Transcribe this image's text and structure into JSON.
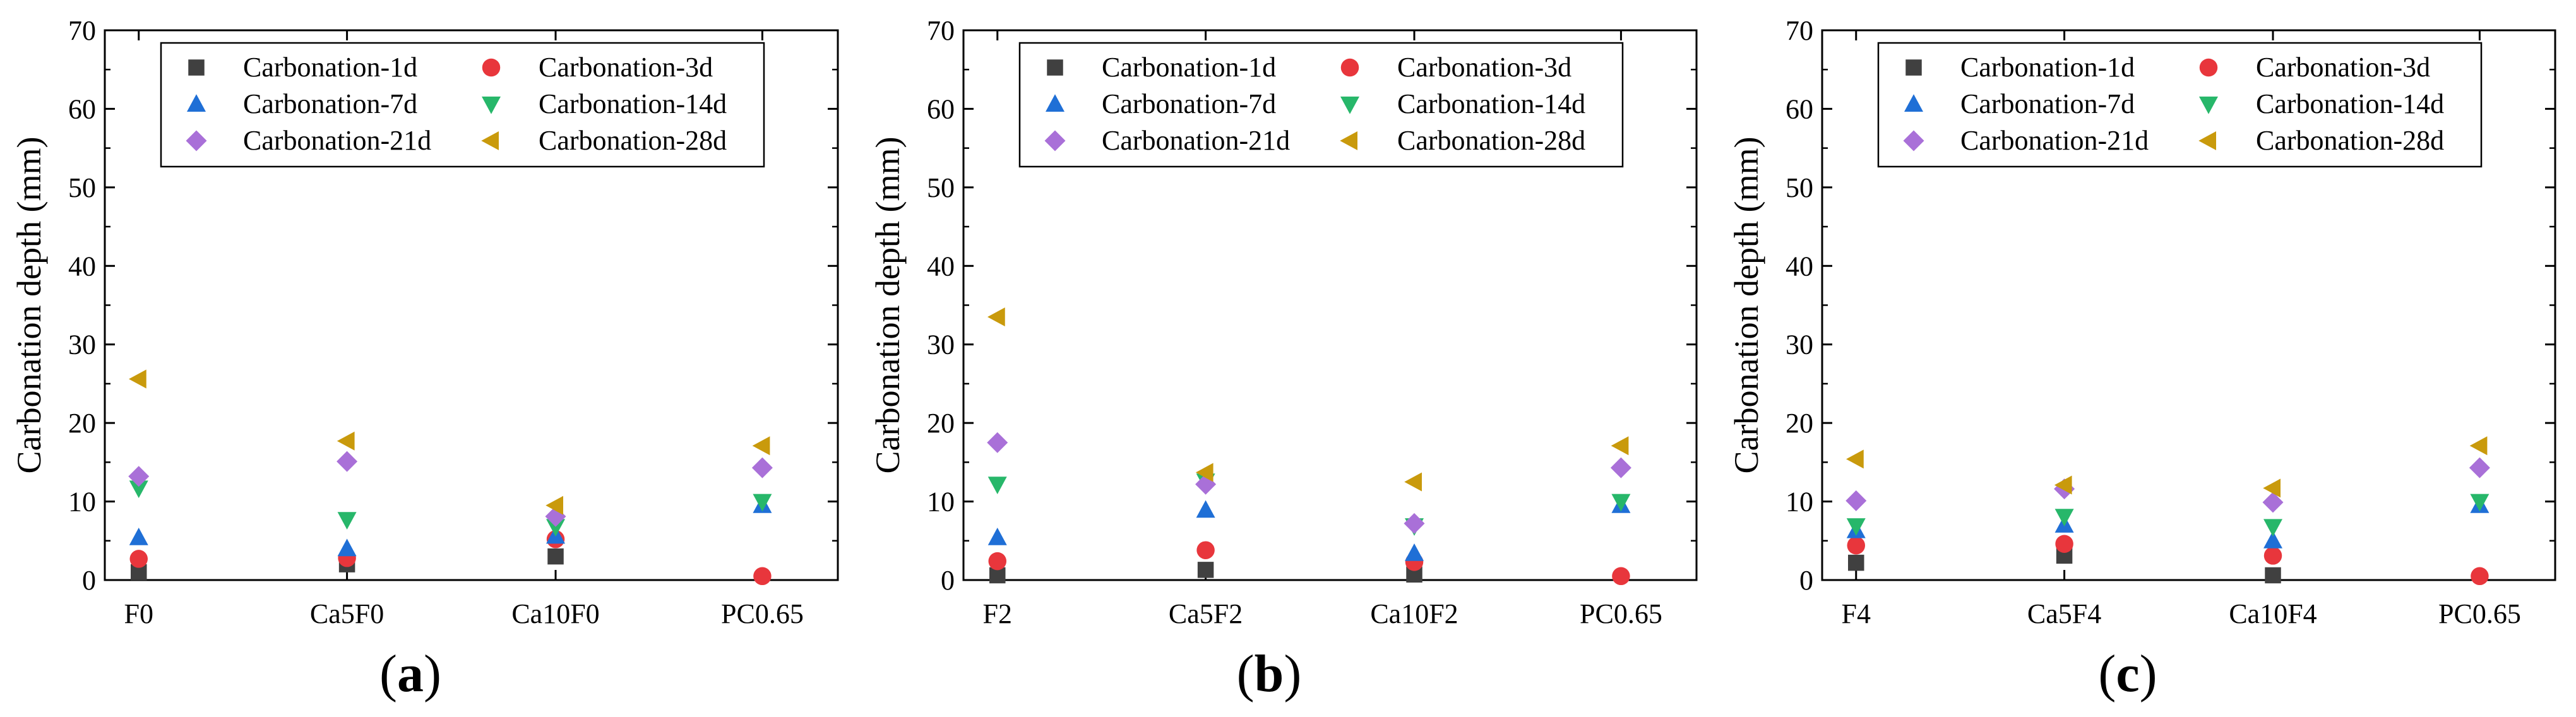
{
  "figure": {
    "panels": [
      {
        "id": "a",
        "label_open": "(",
        "label_letter": "a",
        "label_close": ")"
      },
      {
        "id": "b",
        "label_open": "(",
        "label_letter": "b",
        "label_close": ")"
      },
      {
        "id": "c",
        "label_open": "(",
        "label_letter": "c",
        "label_close": ")"
      }
    ]
  },
  "chart_data": [
    {
      "type": "scatter",
      "panel": "a",
      "title": "",
      "xlabel": "",
      "ylabel": "Carbonation depth (mm)",
      "ylim": [
        0,
        70
      ],
      "yticks": [
        "0",
        "10",
        "20",
        "30",
        "40",
        "50",
        "60",
        "70"
      ],
      "categories": [
        "F0",
        "Ca5F0",
        "Ca10F0",
        "PC0.65"
      ],
      "legend_position": "top-center",
      "series": [
        {
          "name": "Carbonation-1d",
          "marker": "square",
          "color": "#404040",
          "values": [
            1.0,
            2.0,
            3.0,
            null
          ]
        },
        {
          "name": "Carbonation-3d",
          "marker": "circle",
          "color": "#e8363c",
          "values": [
            2.7,
            2.8,
            5.2,
            0.5
          ]
        },
        {
          "name": "Carbonation-7d",
          "marker": "triangle-up",
          "color": "#1f6fd6",
          "values": [
            5.4,
            4.0,
            5.6,
            9.5
          ]
        },
        {
          "name": "Carbonation-14d",
          "marker": "triangle-down",
          "color": "#27b76a",
          "values": [
            11.7,
            7.7,
            6.8,
            10.0
          ]
        },
        {
          "name": "Carbonation-21d",
          "marker": "diamond",
          "color": "#a970d8",
          "values": [
            13.2,
            15.1,
            8.1,
            14.3
          ]
        },
        {
          "name": "Carbonation-28d",
          "marker": "triangle-left",
          "color": "#c99a0c",
          "values": [
            25.6,
            17.7,
            9.5,
            17.1
          ]
        }
      ]
    },
    {
      "type": "scatter",
      "panel": "b",
      "title": "",
      "xlabel": "",
      "ylabel": "Carbonation depth (mm)",
      "ylim": [
        0,
        70
      ],
      "yticks": [
        "0",
        "10",
        "20",
        "30",
        "40",
        "50",
        "60",
        "70"
      ],
      "categories": [
        "F2",
        "Ca5F2",
        "Ca10F2",
        "PC0.65"
      ],
      "legend_position": "top-center",
      "series": [
        {
          "name": "Carbonation-1d",
          "marker": "square",
          "color": "#404040",
          "values": [
            0.6,
            1.3,
            0.7,
            null
          ]
        },
        {
          "name": "Carbonation-3d",
          "marker": "circle",
          "color": "#e8363c",
          "values": [
            2.4,
            3.8,
            2.3,
            0.5
          ]
        },
        {
          "name": "Carbonation-7d",
          "marker": "triangle-up",
          "color": "#1f6fd6",
          "values": [
            5.4,
            8.9,
            3.4,
            9.5
          ]
        },
        {
          "name": "Carbonation-14d",
          "marker": "triangle-down",
          "color": "#27b76a",
          "values": [
            12.2,
            12.6,
            6.9,
            10.0
          ]
        },
        {
          "name": "Carbonation-21d",
          "marker": "diamond",
          "color": "#a970d8",
          "values": [
            17.5,
            12.2,
            7.2,
            14.3
          ]
        },
        {
          "name": "Carbonation-28d",
          "marker": "triangle-left",
          "color": "#c99a0c",
          "values": [
            33.5,
            13.7,
            12.5,
            17.1
          ]
        }
      ]
    },
    {
      "type": "scatter",
      "panel": "c",
      "title": "",
      "xlabel": "",
      "ylabel": "Carbonation depth (mm)",
      "ylim": [
        0,
        70
      ],
      "yticks": [
        "0",
        "10",
        "20",
        "30",
        "40",
        "50",
        "60",
        "70"
      ],
      "categories": [
        "F4",
        "Ca5F4",
        "Ca10F4",
        "PC0.65"
      ],
      "legend_position": "top-center",
      "series": [
        {
          "name": "Carbonation-1d",
          "marker": "square",
          "color": "#404040",
          "values": [
            2.2,
            3.1,
            0.6,
            null
          ]
        },
        {
          "name": "Carbonation-3d",
          "marker": "circle",
          "color": "#e8363c",
          "values": [
            4.4,
            4.6,
            3.1,
            0.5
          ]
        },
        {
          "name": "Carbonation-7d",
          "marker": "triangle-up",
          "color": "#1f6fd6",
          "values": [
            6.3,
            7.0,
            5.0,
            9.5
          ]
        },
        {
          "name": "Carbonation-14d",
          "marker": "triangle-down",
          "color": "#27b76a",
          "values": [
            6.9,
            8.1,
            6.8,
            10.0
          ]
        },
        {
          "name": "Carbonation-21d",
          "marker": "diamond",
          "color": "#a970d8",
          "values": [
            10.1,
            11.6,
            9.9,
            14.3
          ]
        },
        {
          "name": "Carbonation-28d",
          "marker": "triangle-left",
          "color": "#c99a0c",
          "values": [
            15.4,
            12.1,
            11.7,
            17.1
          ]
        }
      ]
    }
  ]
}
